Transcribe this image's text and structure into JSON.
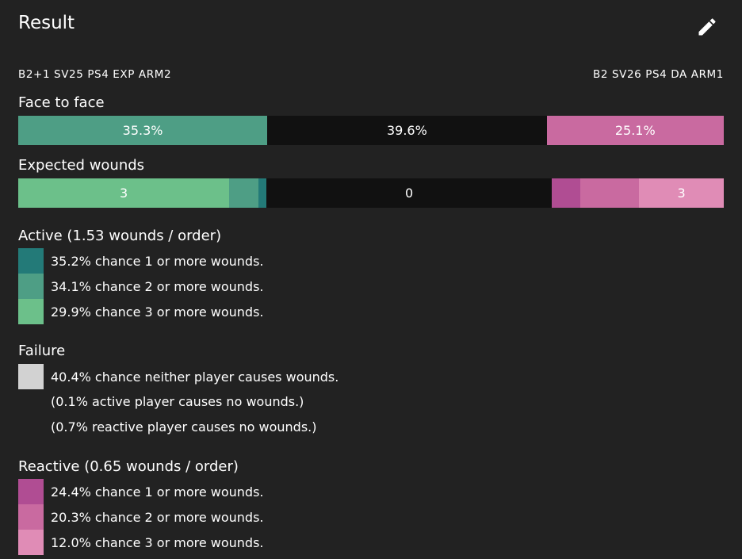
{
  "header": {
    "title": "Result"
  },
  "profiles": {
    "active": "B2+1 SV25 PS4 EXP ARM2",
    "reactive": "B2 SV26 PS4 DA ARM1"
  },
  "face_to_face": {
    "label": "Face to face",
    "segments": [
      {
        "value": 35.3,
        "label": "35.3%",
        "color": "#4e9e85"
      },
      {
        "value": 39.6,
        "label": "39.6%",
        "color": "#111111"
      },
      {
        "value": 25.1,
        "label": "25.1%",
        "color": "#c96aa0"
      }
    ]
  },
  "expected_wounds": {
    "label": "Expected wounds",
    "active_label": "3",
    "failure_label": "0",
    "reactive_label": "3"
  },
  "active": {
    "heading": "Active (1.53 wounds / order)",
    "rows": [
      {
        "value": 35.2,
        "label": "35.2% chance 1 or more wounds.",
        "color": "#237a78"
      },
      {
        "value": 34.1,
        "label": "34.1% chance 2 or more wounds.",
        "color": "#4e9e85"
      },
      {
        "value": 29.9,
        "label": "29.9% chance 3 or more wounds.",
        "color": "#6cc08a"
      }
    ]
  },
  "failure": {
    "heading": "Failure",
    "value": 40.4,
    "label": "40.4% chance neither player causes wounds.",
    "color": "#d2d2d2",
    "bar_color": "#111111",
    "notes": [
      "(0.1% active player causes no wounds.)",
      "(0.7% reactive player causes no wounds.)"
    ]
  },
  "reactive": {
    "heading": "Reactive (0.65 wounds / order)",
    "rows": [
      {
        "value": 24.4,
        "label": "24.4% chance 1 or more wounds.",
        "color": "#b04d93"
      },
      {
        "value": 20.3,
        "label": "20.3% chance 2 or more wounds.",
        "color": "#c96aa0"
      },
      {
        "value": 12.0,
        "label": "12.0% chance 3 or more wounds.",
        "color": "#e08cb6"
      }
    ]
  }
}
